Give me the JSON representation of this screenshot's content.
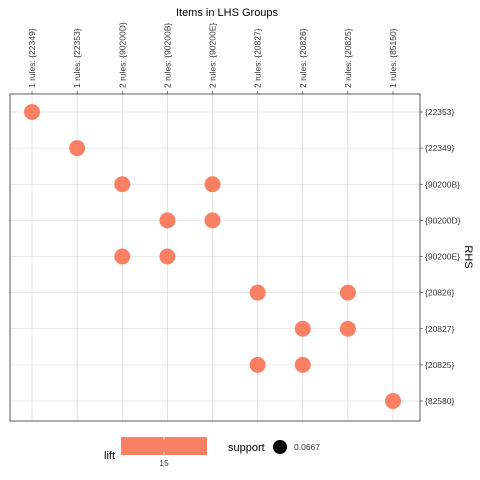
{
  "chart_data": {
    "type": "scatter",
    "title": "Items in LHS Groups",
    "xlabel": "",
    "ylabel": "RHS",
    "x_categories": [
      "1 rules: {22349}",
      "1 rules: {22353}",
      "2 rules: {90200D}",
      "2 rules: {90200B}",
      "2 rules: {90200E}",
      "2 rules: {20827}",
      "2 rules: {20826}",
      "2 rules: {20825}",
      "1 rules: {85150}"
    ],
    "y_categories": [
      "{22353}",
      "{22349}",
      "{90200B}",
      "{90200D}",
      "{90200E}",
      "{20826}",
      "{20827}",
      "{20825}",
      "{82580}"
    ],
    "points": [
      {
        "x": "1 rules: {22349}",
        "y": "{22353}"
      },
      {
        "x": "1 rules: {22353}",
        "y": "{22349}"
      },
      {
        "x": "2 rules: {90200D}",
        "y": "{90200B}"
      },
      {
        "x": "2 rules: {90200E}",
        "y": "{90200B}"
      },
      {
        "x": "2 rules: {90200B}",
        "y": "{90200D}"
      },
      {
        "x": "2 rules: {90200E}",
        "y": "{90200D}"
      },
      {
        "x": "2 rules: {90200D}",
        "y": "{90200E}"
      },
      {
        "x": "2 rules: {90200B}",
        "y": "{90200E}"
      },
      {
        "x": "2 rules: {20827}",
        "y": "{20826}"
      },
      {
        "x": "2 rules: {20825}",
        "y": "{20826}"
      },
      {
        "x": "2 rules: {20826}",
        "y": "{20827}"
      },
      {
        "x": "2 rules: {20825}",
        "y": "{20827}"
      },
      {
        "x": "2 rules: {20827}",
        "y": "{20825}"
      },
      {
        "x": "2 rules: {20826}",
        "y": "{20825}"
      },
      {
        "x": "1 rules: {85150}",
        "y": "{82580}"
      }
    ],
    "point_color": "#FA8064",
    "grid": true,
    "legend": {
      "placement": "bottom",
      "lift": {
        "title": "lift",
        "tick": "15",
        "color": "#FA8064"
      },
      "support": {
        "title": "support",
        "value": "0.0667",
        "marker_color": "#000000"
      }
    }
  }
}
